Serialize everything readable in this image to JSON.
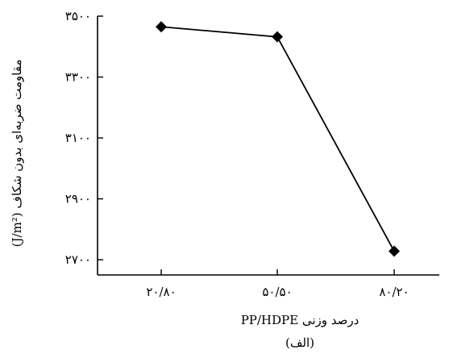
{
  "chart_data": {
    "type": "line",
    "categories": [
      "۲۰/۸۰",
      "۵۰/۵۰",
      "۸۰/۲۰"
    ],
    "series": [
      {
        "values": [
          3465,
          3432,
          2728
        ],
        "color": "#000000",
        "marker": "diamond"
      }
    ],
    "yticks": [
      {
        "value": 2700,
        "label": "۲۷۰۰"
      },
      {
        "value": 2900,
        "label": "۲۹۰۰"
      },
      {
        "value": 3100,
        "label": "۳۱۰۰"
      },
      {
        "value": 3300,
        "label": "۳۳۰۰"
      },
      {
        "value": 3500,
        "label": "۳۵۰۰"
      }
    ],
    "ylim": [
      2650,
      3500
    ],
    "xlabel": "درصد وزنی PP/HDPE",
    "ylabel": "مقاومت ضربه‌ای بدون شکاف (J/m²)",
    "caption": "(الف)",
    "grid": false
  }
}
